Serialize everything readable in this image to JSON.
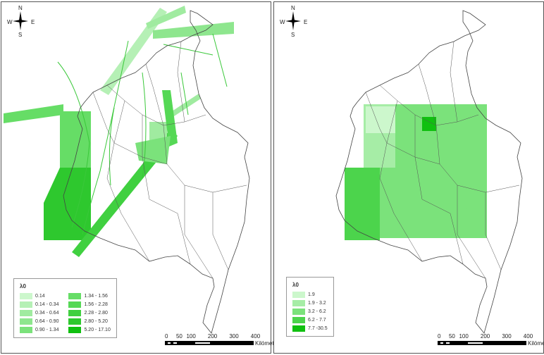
{
  "compass": {
    "n": "N",
    "s": "S",
    "e": "E",
    "w": "W"
  },
  "left_map": {
    "legend": {
      "title": "λ0",
      "items": [
        {
          "label": "0.14",
          "color": "#ccf7cc"
        },
        {
          "label": "0.14 - 0.34",
          "color": "#b5f0b5"
        },
        {
          "label": "0.34 - 0.64",
          "color": "#a0eba0"
        },
        {
          "label": "0.64 - 0.90",
          "color": "#8ee68e"
        },
        {
          "label": "0.90 - 1.34",
          "color": "#7be27b"
        },
        {
          "label": "1.34 - 1.56",
          "color": "#66dd66"
        },
        {
          "label": "1.56 - 2.28",
          "color": "#55d855"
        },
        {
          "label": "2.28 - 2.80",
          "color": "#40d040"
        },
        {
          "label": "2.80 - 5.20",
          "color": "#2ec82e"
        },
        {
          "label": "5.20 - 17.10",
          "color": "#10c010"
        }
      ]
    },
    "scale": {
      "ticks": [
        "0",
        "50",
        "100",
        "200",
        "300",
        "400"
      ],
      "unit": "Kilómetros"
    }
  },
  "right_map": {
    "legend": {
      "title": "λ0",
      "items": [
        {
          "label": "1.9",
          "color": "#ccf7cc"
        },
        {
          "label": "1.9 - 3.2",
          "color": "#a6eda6"
        },
        {
          "label": "3.2 - 6.2",
          "color": "#7be27b"
        },
        {
          "label": "6.2 - 7.7",
          "color": "#4cd44c"
        },
        {
          "label": "7.7 -30.5",
          "color": "#10c010"
        }
      ]
    },
    "scale": {
      "ticks": [
        "0",
        "50",
        "100",
        "200",
        "300",
        "400"
      ],
      "unit": "Kilómetros"
    }
  }
}
